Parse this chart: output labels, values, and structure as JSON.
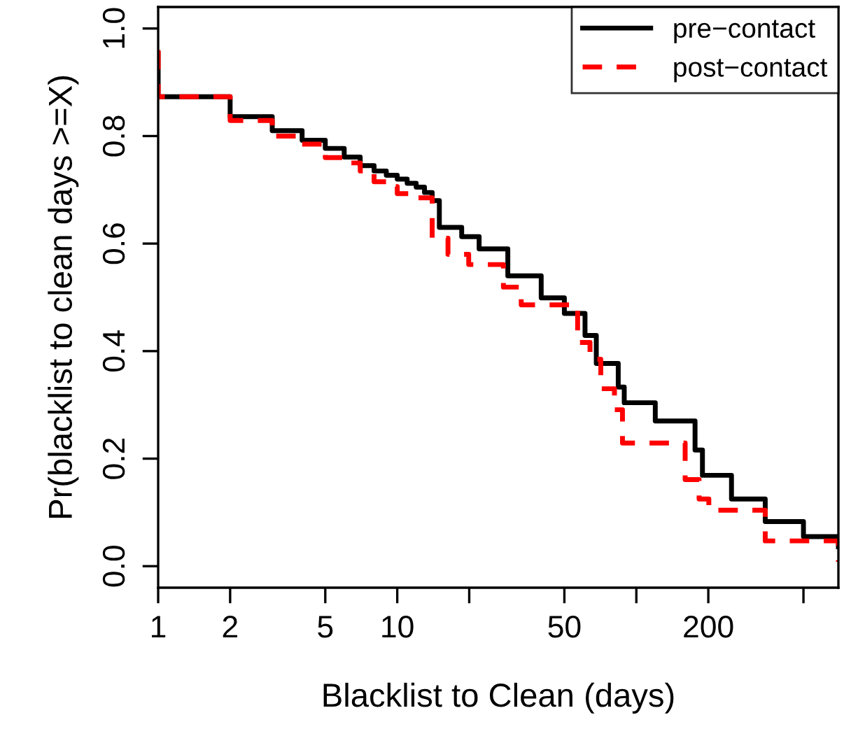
{
  "chart_data": {
    "type": "step",
    "xlabel": "Blacklist to Clean (days)",
    "ylabel": "Pr(blacklist to clean days >=X)",
    "log": "x",
    "xlim": [
      1,
      700
    ],
    "xticks": [
      1,
      2,
      5,
      10,
      {
        "value": 20,
        "label": null
      },
      50,
      {
        "value": 100,
        "label": null
      },
      200,
      {
        "value": 500,
        "label": null
      }
    ],
    "ylim": [
      -0.04,
      1.04
    ],
    "yticks": [
      {
        "value": 0,
        "label": "0.0"
      },
      0.2,
      0.4,
      0.6,
      0.8,
      {
        "value": 1,
        "label": "1.0"
      }
    ],
    "grid": false,
    "legend": "top right",
    "series": [
      {
        "name": "pre−contact",
        "color": "#000000",
        "line_style": "solid",
        "x": [
          1,
          1,
          2,
          3,
          4,
          5,
          6,
          7,
          8,
          9,
          10,
          11,
          12,
          13,
          14,
          15,
          18.6,
          22,
          29,
          40,
          50,
          61,
          68,
          84,
          89,
          120,
          176,
          189,
          250,
          346,
          500,
          700
        ],
        "values": [
          0.953,
          0.873,
          0.836,
          0.81,
          0.792,
          0.777,
          0.761,
          0.745,
          0.735,
          0.727,
          0.72,
          0.712,
          0.705,
          0.695,
          0.68,
          0.63,
          0.613,
          0.59,
          0.54,
          0.499,
          0.47,
          0.429,
          0.377,
          0.333,
          0.304,
          0.27,
          0.216,
          0.169,
          0.125,
          0.083,
          0.055,
          0.036
        ]
      },
      {
        "name": "post−contact",
        "color": "#ff0000",
        "line_style": "dashed",
        "x": [
          1,
          1,
          2,
          3,
          4,
          5,
          6,
          7,
          8,
          9,
          10,
          12,
          14,
          16.3,
          19.9,
          27.8,
          33,
          56.8,
          64,
          71,
          81,
          87.5,
          160,
          183,
          201,
          346,
          700
        ],
        "values": [
          0.96,
          0.873,
          0.829,
          0.8,
          0.785,
          0.76,
          0.75,
          0.735,
          0.715,
          0.706,
          0.693,
          0.685,
          0.61,
          0.58,
          0.561,
          0.519,
          0.486,
          0.416,
          0.385,
          0.33,
          0.291,
          0.229,
          0.161,
          0.125,
          0.104,
          0.047,
          0.008
        ]
      }
    ]
  }
}
